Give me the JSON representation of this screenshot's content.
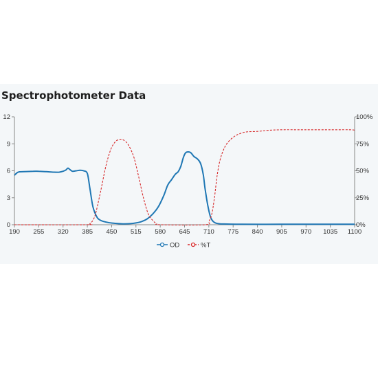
{
  "chart_data": {
    "type": "line",
    "title": "Spectrophotometer Data",
    "xlabel": "",
    "ylabel": "",
    "y2label": "",
    "x_ticks": [
      "190",
      "255",
      "320",
      "385",
      "450",
      "515",
      "580",
      "645",
      "710",
      "775",
      "840",
      "905",
      "970",
      "1035",
      "1100"
    ],
    "xlim": [
      190,
      1100
    ],
    "ylim": [
      0,
      12
    ],
    "y_ticks": [
      "0",
      "3",
      "6",
      "9",
      "12"
    ],
    "y2lim": [
      0,
      100
    ],
    "y2_ticks": [
      "0%",
      "25%",
      "50%",
      "75%",
      "100%"
    ],
    "grid": false,
    "legend_position": "bottom",
    "series": [
      {
        "name": "OD",
        "axis": "left",
        "color": "#1f77b4",
        "style": "solid",
        "points": [
          [
            190,
            5.5
          ],
          [
            200,
            5.85
          ],
          [
            215,
            5.9
          ],
          [
            240,
            5.95
          ],
          [
            255,
            5.95
          ],
          [
            275,
            5.9
          ],
          [
            295,
            5.85
          ],
          [
            310,
            5.85
          ],
          [
            320,
            5.95
          ],
          [
            328,
            6.1
          ],
          [
            333,
            6.3
          ],
          [
            338,
            6.15
          ],
          [
            345,
            5.95
          ],
          [
            355,
            6.0
          ],
          [
            365,
            6.05
          ],
          [
            375,
            6.0
          ],
          [
            385,
            5.7
          ],
          [
            392,
            4.0
          ],
          [
            400,
            2.0
          ],
          [
            410,
            0.9
          ],
          [
            420,
            0.5
          ],
          [
            440,
            0.25
          ],
          [
            460,
            0.15
          ],
          [
            480,
            0.1
          ],
          [
            500,
            0.12
          ],
          [
            515,
            0.2
          ],
          [
            530,
            0.35
          ],
          [
            545,
            0.65
          ],
          [
            560,
            1.2
          ],
          [
            575,
            2.0
          ],
          [
            590,
            3.3
          ],
          [
            600,
            4.4
          ],
          [
            610,
            5.0
          ],
          [
            620,
            5.6
          ],
          [
            628,
            5.9
          ],
          [
            635,
            6.5
          ],
          [
            642,
            7.5
          ],
          [
            648,
            8.0
          ],
          [
            655,
            8.1
          ],
          [
            662,
            8.0
          ],
          [
            670,
            7.6
          ],
          [
            680,
            7.3
          ],
          [
            688,
            6.8
          ],
          [
            695,
            5.6
          ],
          [
            700,
            4.0
          ],
          [
            707,
            2.2
          ],
          [
            715,
            0.8
          ],
          [
            725,
            0.25
          ],
          [
            740,
            0.1
          ],
          [
            760,
            0.08
          ],
          [
            800,
            0.05
          ],
          [
            900,
            0.05
          ],
          [
            1000,
            0.05
          ],
          [
            1100,
            0.05
          ]
        ]
      },
      {
        "name": "%T",
        "axis": "right",
        "color": "#d62728",
        "style": "dashed",
        "points": [
          [
            190,
            0
          ],
          [
            380,
            0
          ],
          [
            392,
            1
          ],
          [
            405,
            8
          ],
          [
            420,
            30
          ],
          [
            435,
            55
          ],
          [
            448,
            70
          ],
          [
            460,
            77
          ],
          [
            470,
            79
          ],
          [
            478,
            79
          ],
          [
            488,
            77
          ],
          [
            498,
            72
          ],
          [
            510,
            62
          ],
          [
            522,
            45
          ],
          [
            535,
            25
          ],
          [
            548,
            10
          ],
          [
            560,
            4
          ],
          [
            570,
            1
          ],
          [
            580,
            0
          ],
          [
            700,
            0
          ],
          [
            710,
            3
          ],
          [
            718,
            10
          ],
          [
            725,
            25
          ],
          [
            732,
            45
          ],
          [
            740,
            60
          ],
          [
            750,
            70
          ],
          [
            760,
            76
          ],
          [
            775,
            81
          ],
          [
            790,
            84
          ],
          [
            810,
            86
          ],
          [
            840,
            86.5
          ],
          [
            870,
            87.5
          ],
          [
            905,
            88
          ],
          [
            970,
            88
          ],
          [
            1035,
            88
          ],
          [
            1090,
            88
          ],
          [
            1100,
            87.5
          ]
        ]
      }
    ]
  }
}
